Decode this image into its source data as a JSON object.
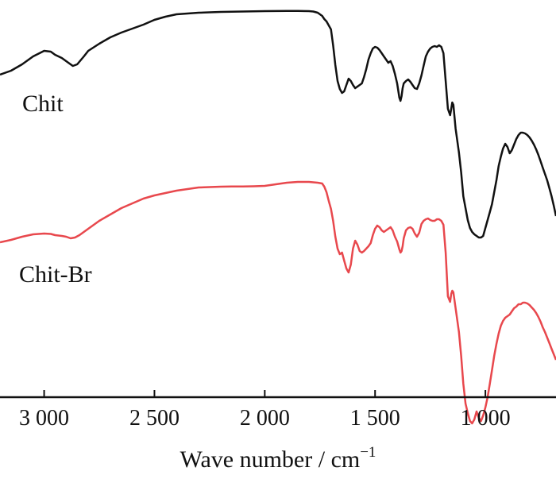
{
  "chart_data": {
    "type": "line",
    "title": "",
    "xlabel": "Wave number / cm",
    "xlabel_superscript": "−1",
    "ylabel": "",
    "x_reversed": true,
    "xlim": [
      3200,
      680
    ],
    "grid": false,
    "legend": "none",
    "x_ticks": [
      3000,
      2500,
      2000,
      1500,
      1000
    ],
    "x_tick_labels": [
      "3 000",
      "2 500",
      "2 000",
      "1 500",
      "1 000"
    ],
    "series": [
      {
        "name": "Chit",
        "color": "#111111",
        "x": [
          3200,
          3150,
          3100,
          3050,
          3000,
          2970,
          2950,
          2920,
          2890,
          2870,
          2850,
          2820,
          2800,
          2750,
          2700,
          2650,
          2600,
          2550,
          2500,
          2450,
          2400,
          2350,
          2300,
          2250,
          2200,
          2150,
          2100,
          2050,
          2000,
          1950,
          1900,
          1850,
          1800,
          1780,
          1760,
          1740,
          1730,
          1720,
          1710,
          1700,
          1690,
          1680,
          1670,
          1660,
          1650,
          1640,
          1630,
          1620,
          1610,
          1600,
          1590,
          1580,
          1570,
          1560,
          1550,
          1540,
          1530,
          1520,
          1510,
          1500,
          1490,
          1480,
          1470,
          1460,
          1450,
          1440,
          1430,
          1420,
          1410,
          1400,
          1390,
          1385,
          1380,
          1375,
          1370,
          1360,
          1350,
          1340,
          1330,
          1320,
          1310,
          1300,
          1290,
          1280,
          1270,
          1260,
          1250,
          1240,
          1230,
          1220,
          1210,
          1200,
          1190,
          1180,
          1170,
          1160,
          1155,
          1150,
          1145,
          1140,
          1135,
          1130,
          1120,
          1110,
          1100,
          1090,
          1080,
          1070,
          1060,
          1050,
          1040,
          1030,
          1020,
          1010,
          1000,
          990,
          980,
          970,
          960,
          950,
          940,
          930,
          920,
          910,
          900,
          890,
          880,
          870,
          860,
          850,
          840,
          830,
          820,
          810,
          800,
          790,
          780,
          770,
          760,
          750,
          740,
          730,
          720,
          710,
          700,
          690,
          680
        ],
        "y": [
          3.0,
          8.0,
          16.0,
          26.0,
          33.0,
          32.0,
          28.0,
          24.0,
          18.0,
          14.0,
          16.0,
          26.0,
          33.0,
          42.0,
          50.0,
          56.0,
          61.0,
          66.0,
          72.0,
          76.0,
          79.0,
          80.0,
          81.0,
          81.5,
          82.0,
          82.3,
          82.5,
          82.7,
          83.0,
          83.1,
          83.2,
          83.3,
          83.0,
          82.5,
          81.0,
          77.0,
          73.0,
          70.0,
          65.0,
          60.0,
          40.0,
          15.0,
          -5.0,
          -15.0,
          -20.0,
          -18.0,
          -10.0,
          -2.0,
          -5.0,
          -10.0,
          -14.0,
          -12.0,
          -10.0,
          -8.0,
          0.0,
          10.0,
          22.0,
          30.0,
          36.0,
          38.0,
          37.0,
          34.0,
          30.0,
          26.0,
          22.0,
          18.0,
          20.0,
          14.0,
          4.0,
          -8.0,
          -26.0,
          -30.0,
          -24.0,
          -14.0,
          -8.0,
          -5.0,
          -3.0,
          -6.0,
          -10.0,
          -14.0,
          -15.0,
          -8.0,
          2.0,
          14.0,
          26.0,
          32.0,
          36.0,
          38.0,
          39.0,
          38.0,
          40.0,
          38.0,
          30.0,
          -5.0,
          -40.0,
          -48.0,
          -40.0,
          -32.0,
          -35.0,
          -50.0,
          -65.0,
          -75.0,
          -95.0,
          -120.0,
          -150.0,
          -165.0,
          -180.0,
          -190.0,
          -195.0,
          -198.0,
          -200.0,
          -202.0,
          -202.0,
          -200.0,
          -190.0,
          -180.0,
          -170.0,
          -160.0,
          -145.0,
          -130.0,
          -112.0,
          -100.0,
          -90.0,
          -84.0,
          -88.0,
          -96.0,
          -92.0,
          -85.0,
          -78.0,
          -73.0,
          -70.0,
          -70.0,
          -71.0,
          -73.0,
          -76.0,
          -80.0,
          -85.0,
          -91.0,
          -98.0,
          -106.0,
          -114.0,
          -122.0,
          -130.0,
          -140.0,
          -150.0,
          -162.0,
          -175.0
        ]
      },
      {
        "name": "Chit-Br",
        "color": "#e8484d",
        "x": [
          3200,
          3150,
          3100,
          3050,
          3000,
          2970,
          2950,
          2920,
          2900,
          2880,
          2860,
          2840,
          2800,
          2750,
          2700,
          2650,
          2600,
          2550,
          2500,
          2450,
          2400,
          2350,
          2300,
          2250,
          2200,
          2150,
          2100,
          2050,
          2000,
          1950,
          1900,
          1850,
          1800,
          1780,
          1760,
          1740,
          1730,
          1720,
          1710,
          1700,
          1690,
          1680,
          1670,
          1660,
          1650,
          1640,
          1630,
          1620,
          1610,
          1600,
          1590,
          1580,
          1570,
          1560,
          1550,
          1540,
          1530,
          1520,
          1510,
          1500,
          1490,
          1480,
          1470,
          1460,
          1450,
          1440,
          1430,
          1420,
          1410,
          1400,
          1390,
          1385,
          1380,
          1375,
          1370,
          1360,
          1350,
          1340,
          1330,
          1320,
          1310,
          1300,
          1290,
          1280,
          1270,
          1260,
          1250,
          1240,
          1230,
          1220,
          1210,
          1200,
          1190,
          1180,
          1170,
          1160,
          1155,
          1150,
          1145,
          1140,
          1135,
          1130,
          1120,
          1110,
          1100,
          1090,
          1080,
          1070,
          1060,
          1050,
          1040,
          1030,
          1020,
          1010,
          1000,
          990,
          980,
          970,
          960,
          950,
          940,
          930,
          920,
          910,
          900,
          890,
          880,
          870,
          860,
          850,
          840,
          830,
          820,
          810,
          800,
          790,
          780,
          770,
          760,
          750,
          740,
          730,
          720,
          710,
          700,
          690,
          680
        ],
        "y": [
          3.0,
          6.0,
          10.0,
          13.0,
          14.0,
          13.5,
          12.0,
          11.0,
          10.0,
          8.0,
          9.0,
          12.0,
          20.0,
          30.0,
          38.0,
          46.0,
          52.0,
          58.0,
          62.0,
          65.0,
          68.0,
          70.0,
          72.0,
          72.5,
          73.0,
          73.2,
          73.2,
          73.5,
          74.0,
          76.0,
          78.0,
          79.0,
          79.0,
          78.5,
          78.0,
          77.0,
          73.0,
          66.0,
          55.0,
          45.0,
          30.0,
          10.0,
          -5.0,
          -12.0,
          -10.0,
          -20.0,
          -30.0,
          -35.0,
          -25.0,
          -5.0,
          5.0,
          0.0,
          -8.0,
          -10.0,
          -8.0,
          -5.0,
          -2.0,
          2.0,
          12.0,
          20.0,
          24.0,
          22.0,
          18.0,
          16.0,
          18.0,
          20.0,
          22.0,
          18.0,
          10.0,
          4.0,
          -6.0,
          -10.0,
          -8.0,
          -2.0,
          8.0,
          18.0,
          21.0,
          22.0,
          20.0,
          14.0,
          10.0,
          15.0,
          26.0,
          30.0,
          32.0,
          33.0,
          31.0,
          30.0,
          30.0,
          32.0,
          32.0,
          30.0,
          25.0,
          -10.0,
          -65.0,
          -72.0,
          -62.0,
          -58.0,
          -60.0,
          -70.0,
          -80.0,
          -90.0,
          -110.0,
          -140.0,
          -175.0,
          -200.0,
          -212.0,
          -222.0,
          -225.0,
          -220.0,
          -210.0,
          -218.0,
          -222.0,
          -215.0,
          -205.0,
          -192.0,
          -175.0,
          -158.0,
          -140.0,
          -125.0,
          -112.0,
          -102.0,
          -96.0,
          -92.0,
          -90.0,
          -88.0,
          -84.0,
          -80.0,
          -78.0,
          -75.0,
          -75.0,
          -73.0,
          -73.0,
          -74.0,
          -76.0,
          -79.0,
          -82.0,
          -86.0,
          -91.0,
          -97.0,
          -104.0,
          -110.0,
          -117.0,
          -124.0,
          -131.0,
          -138.0,
          -145.0
        ]
      }
    ]
  }
}
